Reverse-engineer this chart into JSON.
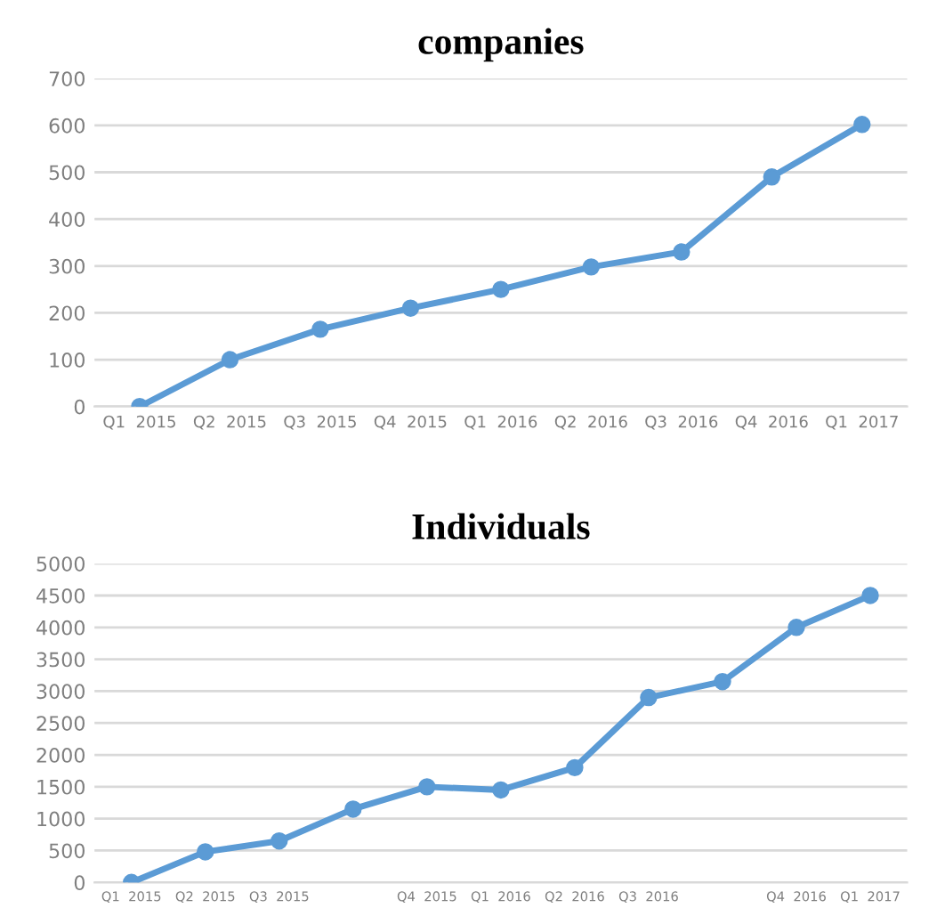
{
  "chart_data": [
    {
      "type": "line",
      "title": "companies",
      "categories": [
        "Q1  2015",
        "Q2  2015",
        "Q3  2015",
        "Q4  2015",
        "Q1  2016",
        "Q2  2016",
        "Q3  2016",
        "Q4  2016",
        "Q1  2017"
      ],
      "series": [
        {
          "color": "#5b9bd5",
          "values": [
            0,
            100,
            165,
            210,
            250,
            298,
            330,
            490,
            602
          ]
        }
      ],
      "ylim": [
        0,
        700
      ],
      "yticks": [
        0,
        100,
        200,
        300,
        400,
        500,
        600,
        700
      ],
      "grid": "y",
      "marker": "circle",
      "line_style": "solid"
    },
    {
      "type": "line",
      "title": "Individuals",
      "categories": [
        "Q1  2015",
        "Q2  2015",
        "Q3  2015",
        null,
        "Q4  2015",
        "Q1  2016",
        "Q2  2016",
        "Q3  2016",
        null,
        "Q4  2016",
        "Q1  2017"
      ],
      "series": [
        {
          "color": "#5b9bd5",
          "values": [
            0,
            480,
            650,
            1150,
            1500,
            1450,
            1800,
            2900,
            3150,
            4000,
            4500
          ]
        }
      ],
      "ylim": [
        0,
        5000
      ],
      "yticks": [
        0,
        500,
        1000,
        1500,
        2000,
        2500,
        3000,
        3500,
        4000,
        4500,
        5000
      ],
      "grid": "y",
      "marker": "circle",
      "line_style": "solid"
    }
  ]
}
